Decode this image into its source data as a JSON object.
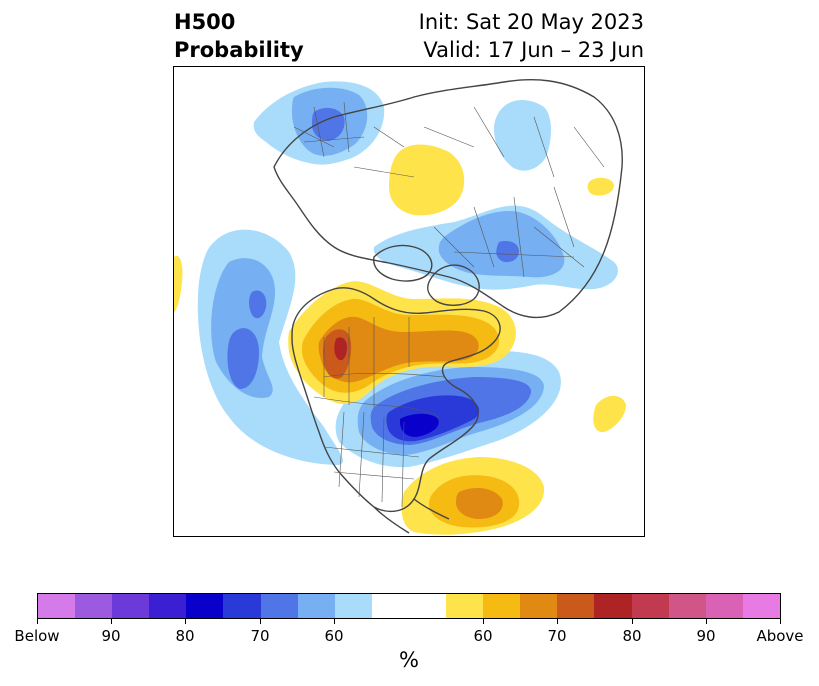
{
  "header": {
    "title_line1": "H500",
    "title_line2": "Probability",
    "init": "Init: Sat 20 May 2023",
    "valid": "Valid: 17 Jun – 23 Jun"
  },
  "colorbar": {
    "colors": [
      "#d57be9",
      "#9c5ae1",
      "#6b3ad9",
      "#3a1fd3",
      "#0a00cc",
      "#2a3ad9",
      "#4f75e6",
      "#76b0f2",
      "#a9dcfb",
      "#ffffff",
      "#ffffff",
      "#ffe34a",
      "#f5bb13",
      "#e08a14",
      "#c95a1c",
      "#ae2324",
      "#c23a50",
      "#cf5686",
      "#da62b5",
      "#e77be3"
    ],
    "tick_labels": [
      "Below",
      "90",
      "80",
      "70",
      "60",
      "60",
      "70",
      "80",
      "90",
      "Above"
    ],
    "units": "%"
  },
  "legend_colors": {
    "blue_60": "#a9dcfb",
    "blue_70": "#76b0f2",
    "blue_80": "#4f75e6",
    "blue_90": "#2a3ad9",
    "blue_max": "#0a00cc",
    "yellow_60": "#ffe34a",
    "yellow_70": "#f5bb13",
    "orange_80": "#e08a14",
    "red_90": "#ae2324"
  }
}
